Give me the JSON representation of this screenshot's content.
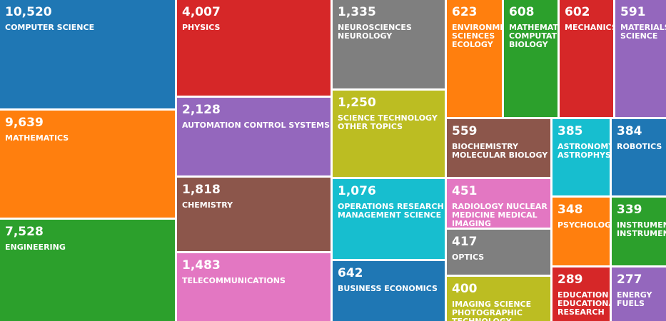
{
  "chart_data": {
    "type": "treemap",
    "items": [
      {
        "value": "10,520",
        "label": "COMPUTER SCIENCE",
        "color": "#1f77b4"
      },
      {
        "value": "9,639",
        "label": "MATHEMATICS",
        "color": "#ff7f0e"
      },
      {
        "value": "7,528",
        "label": "ENGINEERING",
        "color": "#2ca02c"
      },
      {
        "value": "4,007",
        "label": "PHYSICS",
        "color": "#d62728"
      },
      {
        "value": "2,128",
        "label": "AUTOMATION CONTROL SYSTEMS",
        "color": "#9467bd"
      },
      {
        "value": "1,818",
        "label": "CHEMISTRY",
        "color": "#8c564b"
      },
      {
        "value": "1,483",
        "label": "TELECOMMUNICATIONS",
        "color": "#e377c2"
      },
      {
        "value": "1,335",
        "label": "NEUROSCIENCES\nNEUROLOGY",
        "color": "#7f7f7f"
      },
      {
        "value": "1,250",
        "label": "SCIENCE TECHNOLOGY\nOTHER TOPICS",
        "color": "#bcbd22"
      },
      {
        "value": "1,076",
        "label": "OPERATIONS RESEARCH\nMANAGEMENT SCIENCE",
        "color": "#17becf"
      },
      {
        "value": "642",
        "label": "BUSINESS ECONOMICS",
        "color": "#1f77b4"
      },
      {
        "value": "623",
        "label": "ENVIRONMENTAL\nSCIENCES\nECOLOGY",
        "color": "#ff7f0e"
      },
      {
        "value": "608",
        "label": "MATHEMATICAL\nCOMPUTATIONAL\nBIOLOGY",
        "color": "#2ca02c"
      },
      {
        "value": "602",
        "label": "MECHANICS",
        "color": "#d62728"
      },
      {
        "value": "591",
        "label": "MATERIALS\nSCIENCE",
        "color": "#9467bd"
      },
      {
        "value": "559",
        "label": "BIOCHEMISTRY\nMOLECULAR BIOLOGY",
        "color": "#8c564b"
      },
      {
        "value": "385",
        "label": "ASTRONOMY\nASTROPHYSICS",
        "color": "#17becf"
      },
      {
        "value": "384",
        "label": "ROBOTICS",
        "color": "#1f77b4"
      },
      {
        "value": "451",
        "label": "RADIOLOGY NUCLEAR\nMEDICINE MEDICAL\nIMAGING",
        "color": "#e377c2"
      },
      {
        "value": "348",
        "label": "PSYCHOLOGY",
        "color": "#ff7f0e"
      },
      {
        "value": "339",
        "label": "INSTRUMENTS\nINSTRUMENTATION",
        "color": "#2ca02c"
      },
      {
        "value": "417",
        "label": "OPTICS",
        "color": "#7f7f7f"
      },
      {
        "value": "400",
        "label": "IMAGING SCIENCE\nPHOTOGRAPHIC\nTECHNOLOGY",
        "color": "#bcbd22"
      },
      {
        "value": "289",
        "label": "EDUCATION\nEDUCATIONAL\nRESEARCH",
        "color": "#d62728"
      },
      {
        "value": "277",
        "label": "ENERGY\nFUELS",
        "color": "#9467bd"
      }
    ]
  }
}
